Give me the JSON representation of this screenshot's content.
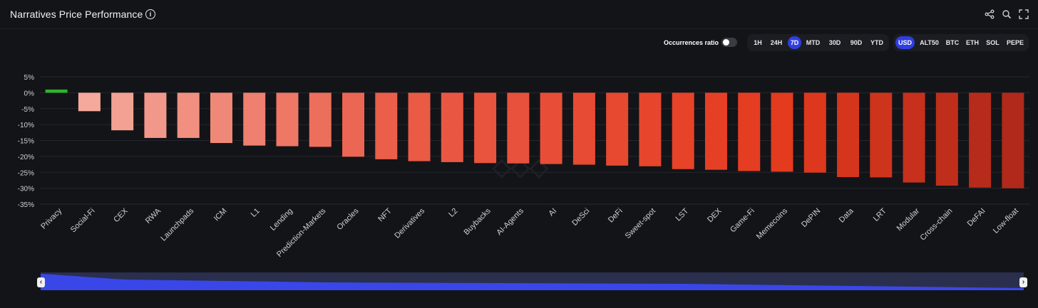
{
  "header": {
    "title": "Narratives Price Performance"
  },
  "icons": {
    "info": "info-icon",
    "share": "share-icon",
    "search": "search-icon",
    "fullscreen": "fullscreen-icon"
  },
  "controls": {
    "toggle_label": "Occurrences ratio",
    "toggle_on": false,
    "timeframes": [
      "1H",
      "24H",
      "7D",
      "MTD",
      "30D",
      "90D",
      "YTD"
    ],
    "active_timeframe": "7D",
    "currencies": [
      "USD",
      "ALT50",
      "BTC",
      "ETH",
      "SOL",
      "PEPE"
    ],
    "active_currency": "USD"
  },
  "colors": {
    "positive": "#2db52d",
    "light": "#f4a99c",
    "mid": "#ea5a45",
    "strong": "#e43a1e",
    "dark": "#b0291a",
    "accent": "#2f3ee0"
  },
  "chart_data": {
    "type": "bar",
    "title": "Narratives Price Performance",
    "xlabel": "",
    "ylabel": "",
    "ylim": [
      -35,
      5
    ],
    "yticks": [
      5,
      0,
      -5,
      -10,
      -15,
      -20,
      -25,
      -30,
      -35
    ],
    "ytick_labels": [
      "5%",
      "0%",
      "-5%",
      "-10%",
      "-15%",
      "-20%",
      "-25%",
      "-30%",
      "-35%"
    ],
    "grid": true,
    "categories": [
      "Privacy",
      "Social-Fi",
      "CEX",
      "RWA",
      "Launchpads",
      "ICM",
      "L1",
      "Lending",
      "Prediction-Markets",
      "Oracles",
      "NFT",
      "Derivatives",
      "L2",
      "Buybacks",
      "AI-Agents",
      "AI",
      "DeSci",
      "DeFi",
      "Sweet-spot",
      "LST",
      "DEX",
      "Game-Fi",
      "Memecoins",
      "DePIN",
      "Data",
      "LRT",
      "Modular",
      "Cross-chain",
      "DeFAI",
      "Low-float"
    ],
    "values": [
      1.0,
      -5.8,
      -11.8,
      -14.2,
      -14.2,
      -15.8,
      -16.6,
      -16.8,
      -17.0,
      -20.1,
      -20.9,
      -21.5,
      -21.8,
      -22.1,
      -22.2,
      -22.4,
      -22.6,
      -22.9,
      -23.1,
      -24.0,
      -24.2,
      -24.6,
      -24.8,
      -25.1,
      -26.5,
      -26.6,
      -28.2,
      -29.2,
      -29.8,
      -30.0
    ]
  }
}
